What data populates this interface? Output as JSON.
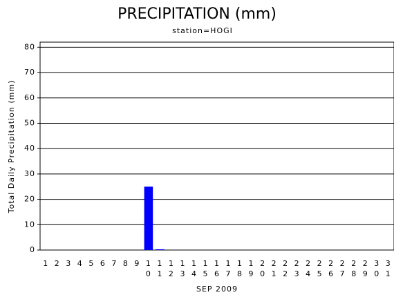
{
  "chart_data": {
    "type": "bar",
    "title": "PRECIPITATION (mm)",
    "subtitle": "station=HOGI",
    "y_label": "Total Daily Precipitation (mm)",
    "x_label": "SEP 2009",
    "categories": [
      "1",
      "2",
      "3",
      "4",
      "5",
      "6",
      "7",
      "8",
      "9",
      "10",
      "11",
      "12",
      "13",
      "14",
      "15",
      "16",
      "17",
      "18",
      "19",
      "20",
      "21",
      "22",
      "23",
      "24",
      "25",
      "26",
      "27",
      "28",
      "29",
      "30",
      "31"
    ],
    "values": [
      0,
      0,
      0,
      0,
      0,
      0,
      0,
      0,
      0,
      25,
      0.3,
      0,
      0,
      0,
      0,
      0,
      0,
      0,
      0,
      0,
      0,
      0,
      0,
      0,
      0,
      0,
      0,
      0,
      0,
      0,
      0
    ],
    "color": "#0000ff",
    "ylim": [
      0,
      82
    ],
    "yticks": [
      0,
      10,
      20,
      30,
      40,
      50,
      60,
      70,
      80
    ],
    "grid": true
  }
}
